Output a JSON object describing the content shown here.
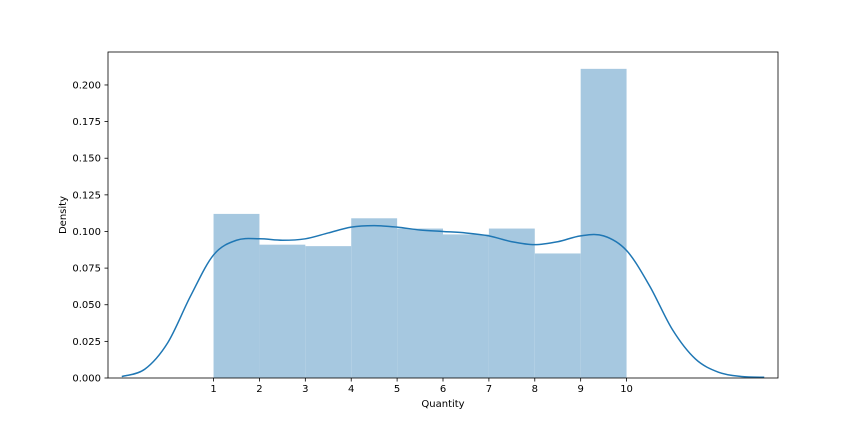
{
  "chart_data": {
    "type": "bar",
    "subtype": "histogram-with-kde",
    "xlabel": "Quantity",
    "ylabel": "Density",
    "xlim": [
      -1.3,
      13.3
    ],
    "ylim": [
      0,
      0.2225
    ],
    "x_ticks": [
      "1",
      "2",
      "3",
      "4",
      "5",
      "6",
      "7",
      "8",
      "9",
      "10"
    ],
    "y_ticks": [
      "0.000",
      "0.025",
      "0.050",
      "0.075",
      "0.100",
      "0.125",
      "0.150",
      "0.175",
      "0.200"
    ],
    "bins": [
      {
        "x0": 1,
        "x1": 2,
        "value": 0.112
      },
      {
        "x0": 2,
        "x1": 3,
        "value": 0.091
      },
      {
        "x0": 3,
        "x1": 4,
        "value": 0.09
      },
      {
        "x0": 4,
        "x1": 5,
        "value": 0.109
      },
      {
        "x0": 5,
        "x1": 6,
        "value": 0.102
      },
      {
        "x0": 6,
        "x1": 7,
        "value": 0.098
      },
      {
        "x0": 7,
        "x1": 8,
        "value": 0.102
      },
      {
        "x0": 8,
        "x1": 9,
        "value": 0.085
      },
      {
        "x0": 9,
        "x1": 10,
        "value": 0.211
      }
    ],
    "kde": {
      "x": [
        -1.0,
        -0.5,
        0.0,
        0.5,
        1.0,
        1.5,
        2.0,
        2.5,
        3.0,
        3.5,
        4.0,
        4.5,
        5.0,
        5.5,
        6.0,
        6.5,
        7.0,
        7.5,
        8.0,
        8.5,
        9.0,
        9.5,
        10.0,
        10.5,
        11.0,
        11.5,
        12.0,
        12.5,
        13.0
      ],
      "y": [
        0.001,
        0.006,
        0.024,
        0.056,
        0.084,
        0.094,
        0.095,
        0.094,
        0.095,
        0.099,
        0.103,
        0.104,
        0.103,
        0.101,
        0.1,
        0.099,
        0.097,
        0.093,
        0.091,
        0.093,
        0.097,
        0.097,
        0.087,
        0.063,
        0.033,
        0.013,
        0.004,
        0.001,
        0.0005
      ]
    },
    "grid": false,
    "legend": "none",
    "colors": {
      "bar_fill": "#a6c8e0",
      "kde_line": "#1f77b4",
      "axes": "#000000"
    }
  }
}
